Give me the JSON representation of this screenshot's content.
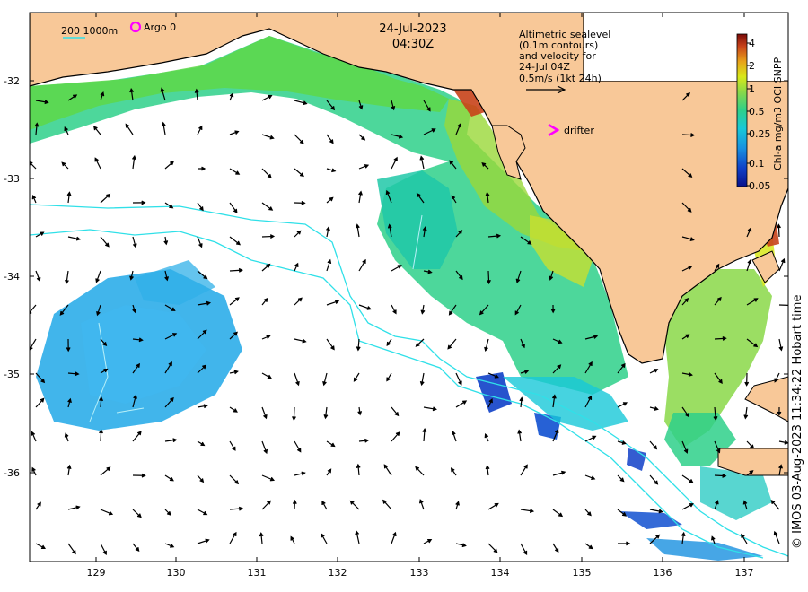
{
  "title": {
    "date": "24-Jul-2023",
    "time": "04:30Z"
  },
  "scale_legend": {
    "isobath_label": "200  1000m",
    "argo_label": "Argo 0"
  },
  "altimetry_note": {
    "lines": [
      "Altimetric sealevel",
      "(0.1m contours)",
      "and velocity for",
      "24-Jul 04Z",
      "0.5m/s (1kt 24h)"
    ]
  },
  "drifter_label": "drifter",
  "colorbar": {
    "title": "Chl-a mg/m3 OCI SNPP",
    "ticks": [
      "4",
      "2",
      "1",
      "0.5",
      "0.25",
      "0.1",
      "0.05"
    ],
    "colors": [
      "#7a0a08",
      "#c8431a",
      "#e8a21a",
      "#d8e81a",
      "#8ad848",
      "#2ed08a",
      "#18c8d8",
      "#1890e0",
      "#1040c8",
      "#08108a"
    ]
  },
  "credit": "© IMOS 03-Aug-2023 11:34:22 Hobart time",
  "axes": {
    "x_ticks": [
      "129",
      "130",
      "131",
      "132",
      "133",
      "134",
      "135",
      "136",
      "137"
    ],
    "y_ticks": [
      "-32",
      "-33",
      "-34",
      "-35",
      "-36"
    ]
  },
  "colors": {
    "land": "#f8c898",
    "coast": "#000000",
    "isobath": "#30e0e8",
    "drifter": "#ff00ff"
  }
}
